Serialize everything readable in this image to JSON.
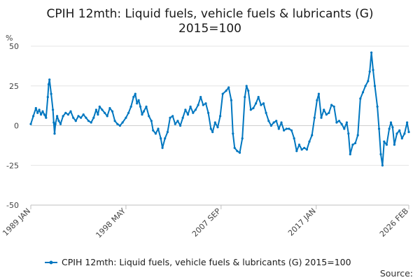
{
  "chart_data": {
    "type": "line",
    "title": "CPIH 12mth: Liquid fuels, vehicle fuels & lubricants (G)",
    "subtitle": "2015=100",
    "y_unit": "%",
    "ylim": [
      -50,
      50
    ],
    "yticks": [
      50,
      25,
      0,
      -25,
      -50
    ],
    "xlim": [
      "1989-01",
      "2026-02"
    ],
    "xticks": [
      {
        "date": "1989-01",
        "label": "1989 JAN"
      },
      {
        "date": "1998-05",
        "label": "1998 MAY"
      },
      {
        "date": "2007-09",
        "label": "2007 SEP"
      },
      {
        "date": "2017-01",
        "label": "2017 JAN"
      },
      {
        "date": "2026-02",
        "label": "2026 FEB"
      }
    ],
    "grid": true,
    "legend_position": "bottom",
    "series_color": "#0077c0",
    "series": [
      {
        "name": "CPIH 12mth: Liquid fuels, vehicle fuels & lubricants (G) 2015=100",
        "points": [
          [
            "1989-01",
            1
          ],
          [
            "1989-04",
            6
          ],
          [
            "1989-07",
            11
          ],
          [
            "1989-09",
            8
          ],
          [
            "1989-11",
            10
          ],
          [
            "1990-01",
            7
          ],
          [
            "1990-03",
            9
          ],
          [
            "1990-05",
            7
          ],
          [
            "1990-07",
            5
          ],
          [
            "1990-09",
            18
          ],
          [
            "1990-10",
            26
          ],
          [
            "1990-11",
            29
          ],
          [
            "1991-01",
            20
          ],
          [
            "1991-03",
            10
          ],
          [
            "1991-04",
            2
          ],
          [
            "1991-05",
            -5
          ],
          [
            "1991-06",
            1
          ],
          [
            "1991-08",
            6
          ],
          [
            "1991-10",
            3
          ],
          [
            "1991-12",
            1
          ],
          [
            "1992-03",
            6
          ],
          [
            "1992-06",
            8
          ],
          [
            "1992-09",
            7
          ],
          [
            "1992-12",
            9
          ],
          [
            "1993-03",
            5
          ],
          [
            "1993-06",
            3
          ],
          [
            "1993-09",
            6
          ],
          [
            "1993-12",
            5
          ],
          [
            "1994-03",
            7
          ],
          [
            "1994-06",
            5
          ],
          [
            "1994-09",
            3
          ],
          [
            "1994-12",
            2
          ],
          [
            "1995-03",
            5
          ],
          [
            "1995-06",
            10
          ],
          [
            "1995-08",
            7
          ],
          [
            "1995-10",
            12
          ],
          [
            "1996-01",
            10
          ],
          [
            "1996-04",
            8
          ],
          [
            "1996-07",
            6
          ],
          [
            "1996-10",
            11
          ],
          [
            "1997-01",
            9
          ],
          [
            "1997-04",
            3
          ],
          [
            "1997-07",
            1
          ],
          [
            "1997-10",
            0
          ],
          [
            "1998-01",
            2
          ],
          [
            "1998-05",
            5
          ],
          [
            "1998-08",
            8
          ],
          [
            "1998-11",
            12
          ],
          [
            "1999-02",
            18
          ],
          [
            "1999-04",
            20
          ],
          [
            "1999-06",
            14
          ],
          [
            "1999-08",
            16
          ],
          [
            "1999-10",
            12
          ],
          [
            "1999-12",
            7
          ],
          [
            "2000-02",
            9
          ],
          [
            "2000-05",
            12
          ],
          [
            "2000-08",
            6
          ],
          [
            "2000-11",
            3
          ],
          [
            "2001-01",
            -3
          ],
          [
            "2001-04",
            -5
          ],
          [
            "2001-07",
            -2
          ],
          [
            "2001-10",
            -8
          ],
          [
            "2001-12",
            -14
          ],
          [
            "2002-03",
            -8
          ],
          [
            "2002-06",
            -4
          ],
          [
            "2002-09",
            5
          ],
          [
            "2002-12",
            6
          ],
          [
            "2003-03",
            1
          ],
          [
            "2003-06",
            3
          ],
          [
            "2003-09",
            0
          ],
          [
            "2003-12",
            5
          ],
          [
            "2004-03",
            10
          ],
          [
            "2004-06",
            7
          ],
          [
            "2004-09",
            12
          ],
          [
            "2004-12",
            8
          ],
          [
            "2005-03",
            10
          ],
          [
            "2005-06",
            13
          ],
          [
            "2005-09",
            18
          ],
          [
            "2005-12",
            13
          ],
          [
            "2006-03",
            14
          ],
          [
            "2006-06",
            8
          ],
          [
            "2006-09",
            -2
          ],
          [
            "2006-11",
            -4
          ],
          [
            "2007-02",
            2
          ],
          [
            "2007-05",
            -1
          ],
          [
            "2007-08",
            6
          ],
          [
            "2007-11",
            20
          ],
          [
            "2008-03",
            22
          ],
          [
            "2008-06",
            24
          ],
          [
            "2008-09",
            16
          ],
          [
            "2008-11",
            -5
          ],
          [
            "2009-01",
            -14
          ],
          [
            "2009-04",
            -16
          ],
          [
            "2009-07",
            -17
          ],
          [
            "2009-10",
            -8
          ],
          [
            "2010-01",
            18
          ],
          [
            "2010-03",
            25
          ],
          [
            "2010-05",
            22
          ],
          [
            "2010-08",
            10
          ],
          [
            "2010-11",
            11
          ],
          [
            "2011-02",
            14
          ],
          [
            "2011-05",
            18
          ],
          [
            "2011-08",
            13
          ],
          [
            "2011-11",
            14
          ],
          [
            "2012-02",
            8
          ],
          [
            "2012-05",
            3
          ],
          [
            "2012-08",
            0
          ],
          [
            "2012-11",
            2
          ],
          [
            "2013-02",
            3
          ],
          [
            "2013-05",
            -2
          ],
          [
            "2013-08",
            2
          ],
          [
            "2013-11",
            -3
          ],
          [
            "2014-02",
            -2
          ],
          [
            "2014-05",
            -2
          ],
          [
            "2014-08",
            -3
          ],
          [
            "2014-11",
            -8
          ],
          [
            "2015-02",
            -16
          ],
          [
            "2015-05",
            -12
          ],
          [
            "2015-08",
            -15
          ],
          [
            "2015-11",
            -14
          ],
          [
            "2016-02",
            -15
          ],
          [
            "2016-05",
            -10
          ],
          [
            "2016-08",
            -6
          ],
          [
            "2016-11",
            5
          ],
          [
            "2017-02",
            16
          ],
          [
            "2017-04",
            20
          ],
          [
            "2017-07",
            5
          ],
          [
            "2017-10",
            10
          ],
          [
            "2018-01",
            7
          ],
          [
            "2018-04",
            8
          ],
          [
            "2018-07",
            13
          ],
          [
            "2018-10",
            12
          ],
          [
            "2019-01",
            2
          ],
          [
            "2019-04",
            3
          ],
          [
            "2019-07",
            1
          ],
          [
            "2019-10",
            -2
          ],
          [
            "2020-01",
            2
          ],
          [
            "2020-03",
            -5
          ],
          [
            "2020-05",
            -18
          ],
          [
            "2020-08",
            -12
          ],
          [
            "2020-11",
            -11
          ],
          [
            "2021-02",
            -6
          ],
          [
            "2021-05",
            17
          ],
          [
            "2021-08",
            21
          ],
          [
            "2021-11",
            25
          ],
          [
            "2022-02",
            28
          ],
          [
            "2022-04",
            34
          ],
          [
            "2022-06",
            46
          ],
          [
            "2022-08",
            35
          ],
          [
            "2022-10",
            25
          ],
          [
            "2023-01",
            12
          ],
          [
            "2023-03",
            -2
          ],
          [
            "2023-05",
            -18
          ],
          [
            "2023-07",
            -25
          ],
          [
            "2023-09",
            -10
          ],
          [
            "2023-12",
            -12
          ],
          [
            "2024-03",
            -2
          ],
          [
            "2024-05",
            2
          ],
          [
            "2024-07",
            -1
          ],
          [
            "2024-09",
            -12
          ],
          [
            "2024-12",
            -5
          ],
          [
            "2025-03",
            -3
          ],
          [
            "2025-06",
            -8
          ],
          [
            "2025-09",
            -5
          ],
          [
            "2025-12",
            2
          ],
          [
            "2026-02",
            -4
          ]
        ]
      }
    ]
  },
  "source_label": "Source:"
}
